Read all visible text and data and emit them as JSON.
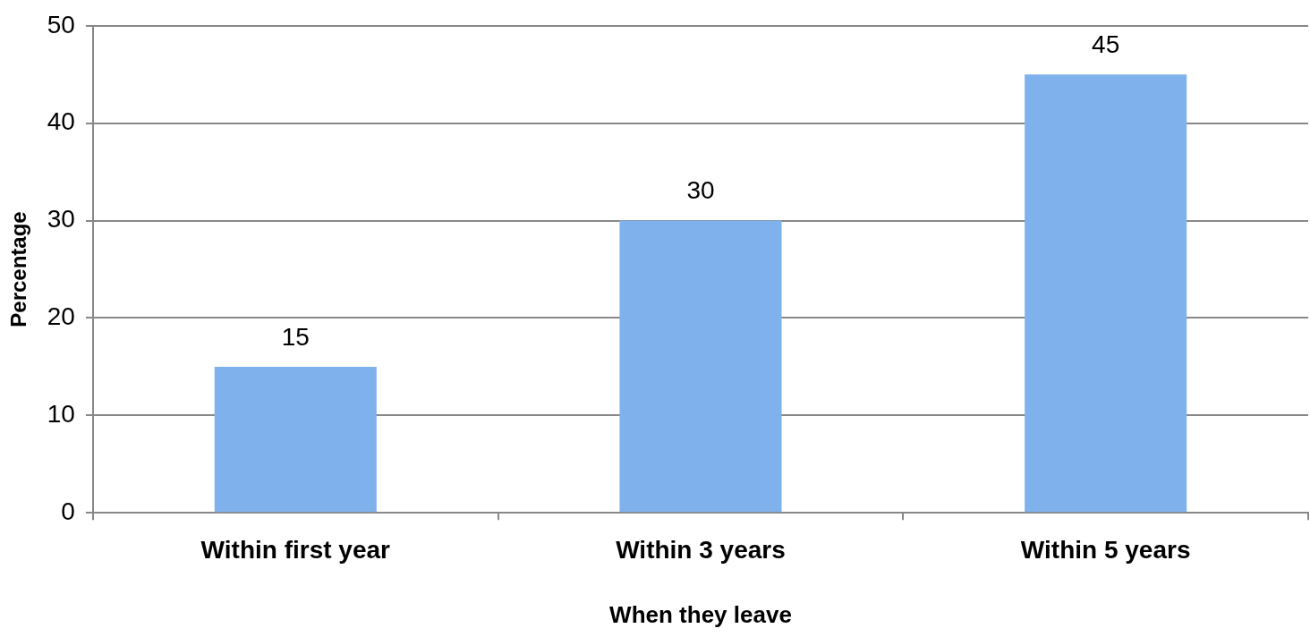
{
  "chart_data": {
    "type": "bar",
    "categories": [
      "Within first year",
      "Within 3 years",
      "Within 5 years"
    ],
    "values": [
      15,
      30,
      45
    ],
    "color": "#7fb1ec",
    "xlabel": "When they leave",
    "ylabel": "Percentage",
    "ylim": [
      0,
      50
    ],
    "yticks": [
      0,
      10,
      20,
      30,
      40,
      50
    ],
    "grid": "y",
    "data_labels": true
  }
}
